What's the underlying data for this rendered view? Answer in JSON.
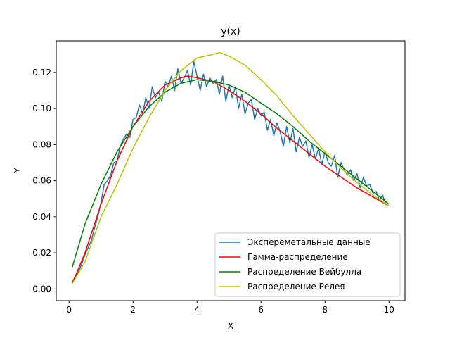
{
  "chart_data": {
    "type": "line",
    "title": "y(x)",
    "xlabel": "X",
    "ylabel": "Y",
    "xlim": [
      -0.4,
      10.5
    ],
    "ylim": [
      -0.0065,
      0.1375
    ],
    "xticks": [
      0,
      2,
      4,
      6,
      8,
      10
    ],
    "xtick_labels": [
      "0",
      "2",
      "4",
      "6",
      "8",
      "10"
    ],
    "yticks": [
      0.0,
      0.02,
      0.04,
      0.06,
      0.08,
      0.1,
      0.12
    ],
    "ytick_labels": [
      "0.00",
      "0.02",
      "0.04",
      "0.06",
      "0.08",
      "0.10",
      "0.12"
    ],
    "grid": false,
    "legend_position": "lower right",
    "series": [
      {
        "name": "Экспереметальные данные",
        "color": "#1f77b4",
        "x": [
          0.1,
          0.2,
          0.3,
          0.4,
          0.5,
          0.6,
          0.7,
          0.8,
          0.9,
          1.0,
          1.1,
          1.2,
          1.3,
          1.4,
          1.5,
          1.6,
          1.7,
          1.8,
          1.9,
          2.0,
          2.1,
          2.2,
          2.3,
          2.4,
          2.5,
          2.6,
          2.7,
          2.8,
          2.9,
          3.0,
          3.1,
          3.2,
          3.3,
          3.4,
          3.5,
          3.6,
          3.7,
          3.8,
          3.9,
          4.0,
          4.1,
          4.2,
          4.3,
          4.4,
          4.5,
          4.6,
          4.7,
          4.8,
          4.9,
          5.0,
          5.1,
          5.2,
          5.3,
          5.4,
          5.5,
          5.6,
          5.7,
          5.8,
          5.9,
          6.0,
          6.1,
          6.2,
          6.3,
          6.4,
          6.5,
          6.6,
          6.7,
          6.8,
          6.9,
          7.0,
          7.1,
          7.2,
          7.3,
          7.4,
          7.5,
          7.6,
          7.7,
          7.8,
          7.9,
          8.0,
          8.1,
          8.2,
          8.3,
          8.4,
          8.5,
          8.6,
          8.7,
          8.8,
          8.9,
          9.0,
          9.1,
          9.2,
          9.3,
          9.4,
          9.5,
          9.6,
          9.7,
          9.8,
          9.9,
          10.0
        ],
        "values": [
          0.004,
          0.007,
          0.01,
          0.014,
          0.019,
          0.023,
          0.027,
          0.034,
          0.04,
          0.048,
          0.058,
          0.06,
          0.063,
          0.07,
          0.071,
          0.079,
          0.083,
          0.086,
          0.084,
          0.094,
          0.095,
          0.102,
          0.097,
          0.106,
          0.1,
          0.112,
          0.106,
          0.109,
          0.104,
          0.115,
          0.112,
          0.118,
          0.11,
          0.122,
          0.114,
          0.117,
          0.121,
          0.113,
          0.126,
          0.118,
          0.11,
          0.119,
          0.112,
          0.117,
          0.114,
          0.116,
          0.108,
          0.118,
          0.104,
          0.113,
          0.106,
          0.112,
          0.1,
          0.108,
          0.097,
          0.103,
          0.105,
          0.094,
          0.1,
          0.096,
          0.098,
          0.088,
          0.094,
          0.085,
          0.092,
          0.087,
          0.079,
          0.09,
          0.081,
          0.089,
          0.076,
          0.084,
          0.079,
          0.082,
          0.073,
          0.08,
          0.072,
          0.078,
          0.069,
          0.076,
          0.07,
          0.068,
          0.074,
          0.062,
          0.07,
          0.066,
          0.063,
          0.066,
          0.06,
          0.064,
          0.056,
          0.062,
          0.057,
          0.058,
          0.053,
          0.054,
          0.049,
          0.052,
          0.047,
          0.046
        ]
      },
      {
        "name": "Гамма-распределение",
        "color": "#ff0000",
        "x": [
          0.1,
          0.5,
          1.0,
          1.5,
          2.0,
          2.5,
          3.0,
          3.5,
          3.7,
          4.0,
          4.5,
          5.0,
          5.5,
          6.0,
          6.5,
          7.0,
          7.5,
          8.0,
          8.5,
          9.0,
          9.5,
          10.0
        ],
        "values": [
          0.003,
          0.02,
          0.047,
          0.071,
          0.09,
          0.104,
          0.113,
          0.117,
          0.118,
          0.117,
          0.115,
          0.11,
          0.104,
          0.097,
          0.089,
          0.082,
          0.075,
          0.068,
          0.062,
          0.056,
          0.051,
          0.046
        ]
      },
      {
        "name": "Распределение Вейбулла",
        "color": "#008000",
        "x": [
          0.1,
          0.5,
          1.0,
          1.5,
          2.0,
          2.5,
          3.0,
          3.5,
          4.0,
          4.5,
          5.0,
          5.5,
          6.0,
          6.5,
          7.0,
          7.5,
          8.0,
          8.5,
          9.0,
          9.5,
          10.0
        ],
        "values": [
          0.012,
          0.036,
          0.058,
          0.076,
          0.09,
          0.101,
          0.109,
          0.114,
          0.116,
          0.115,
          0.113,
          0.109,
          0.103,
          0.097,
          0.09,
          0.082,
          0.075,
          0.068,
          0.061,
          0.054,
          0.047
        ]
      },
      {
        "name": "Распределение Релея",
        "color": "#bfbf00",
        "x": [
          0.1,
          0.5,
          1.0,
          1.5,
          2.0,
          2.5,
          3.0,
          3.5,
          4.0,
          4.5,
          4.7,
          5.0,
          5.5,
          6.0,
          6.5,
          7.0,
          7.5,
          8.0,
          8.5,
          9.0,
          9.5,
          10.0
        ],
        "values": [
          0.003,
          0.015,
          0.04,
          0.058,
          0.078,
          0.095,
          0.11,
          0.121,
          0.128,
          0.13,
          0.131,
          0.129,
          0.124,
          0.116,
          0.107,
          0.096,
          0.086,
          0.076,
          0.067,
          0.059,
          0.052,
          0.046
        ]
      }
    ]
  }
}
